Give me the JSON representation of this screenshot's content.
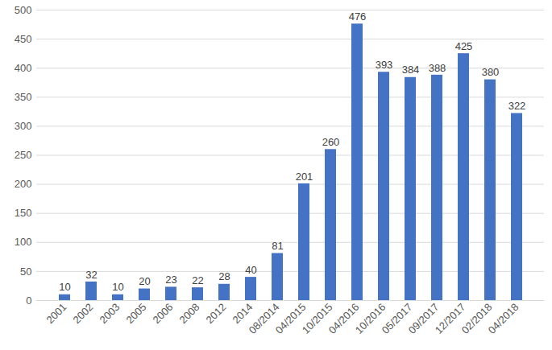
{
  "chart_data": {
    "type": "bar",
    "categories": [
      "2001",
      "2002",
      "2003",
      "2005",
      "2006",
      "2008",
      "2012",
      "2014",
      "08/2014",
      "04/2015",
      "10/2015",
      "04/2016",
      "10/2016",
      "05/2017",
      "09/2017",
      "12/2017",
      "02/2018",
      "04/2018"
    ],
    "values": [
      10,
      32,
      10,
      20,
      23,
      22,
      28,
      40,
      81,
      201,
      260,
      476,
      393,
      384,
      388,
      425,
      380,
      322
    ],
    "color": "#4472c4",
    "ylim": [
      0,
      500
    ],
    "yticks": [
      0,
      50,
      100,
      150,
      200,
      250,
      300,
      350,
      400,
      450,
      500
    ],
    "grid": true,
    "data_labels": true
  }
}
